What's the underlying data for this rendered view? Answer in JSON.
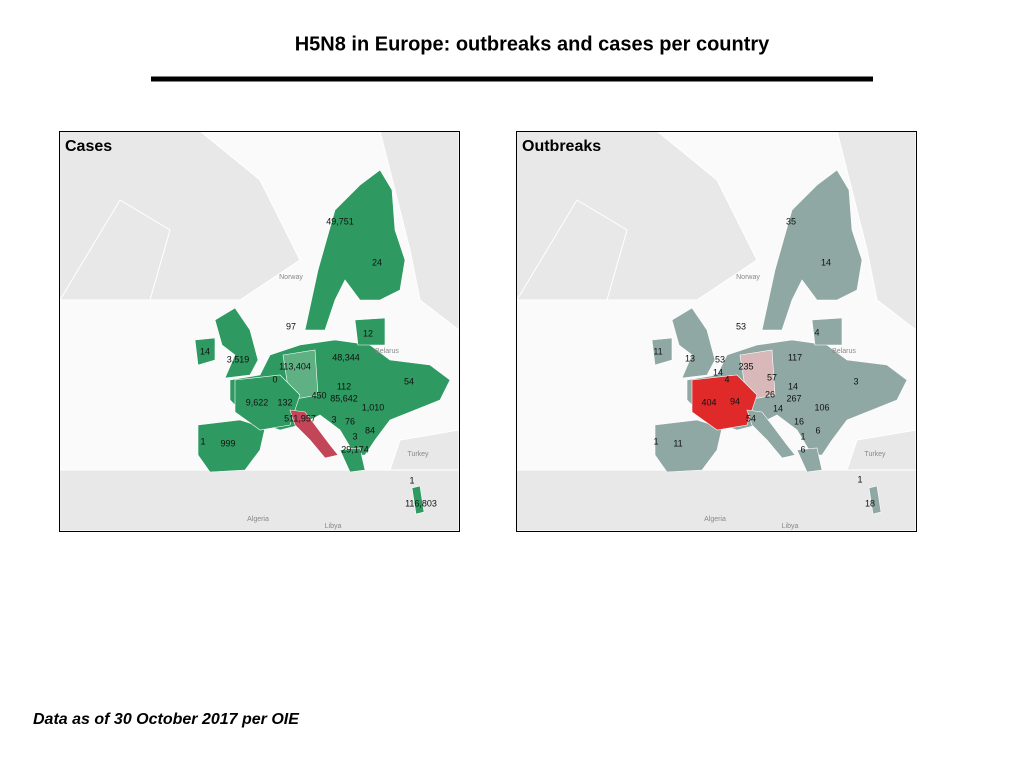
{
  "header": {
    "title": "H5N8 in Europe: outbreaks and cases per country"
  },
  "maps": [
    {
      "title": "Cases",
      "labels": [
        "49,751",
        "24",
        "97",
        "12",
        "14",
        "3,519",
        "48,344",
        "113,404",
        "0",
        "54",
        "112",
        "450",
        "85,642",
        "9,622",
        "132",
        "1,010",
        "511,957",
        "3",
        "76",
        "84",
        "1",
        "999",
        "3",
        "29,174",
        "1",
        "116,803"
      ],
      "place_names": [
        "Norway",
        "Belarus",
        "Turkey",
        "Algeria",
        "Libya"
      ]
    },
    {
      "title": "Outbreaks",
      "labels": [
        "35",
        "14",
        "53",
        "4",
        "11",
        "13",
        "53",
        "117",
        "235",
        "14",
        "4",
        "57",
        "3",
        "14",
        "26",
        "267",
        "404",
        "94",
        "106",
        "14",
        "54",
        "16",
        "6",
        "1",
        "11",
        "1",
        "6",
        "1",
        "18"
      ],
      "place_names": [
        "Norway",
        "Belarus",
        "Turkey",
        "Algeria",
        "Libya"
      ]
    }
  ],
  "footer": "Data as of 30 October 2017 per OIE"
}
